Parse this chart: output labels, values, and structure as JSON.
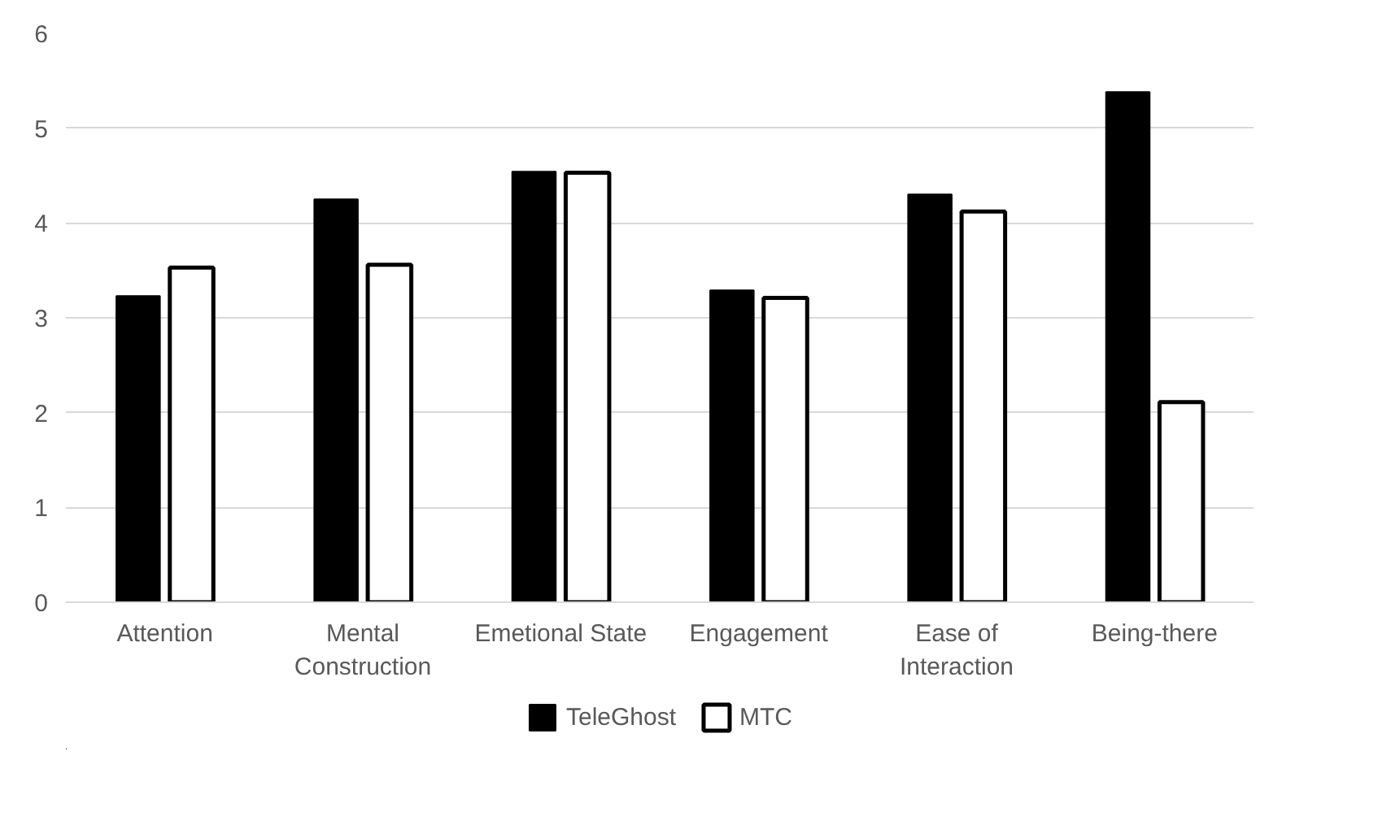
{
  "chart_data": {
    "type": "bar",
    "categories": [
      "Attention",
      "Mental\nConstruction",
      "Emetional State",
      "Engagement",
      "Ease of\nInteraction",
      "Being-there"
    ],
    "series": [
      {
        "name": "TeleGhost",
        "color": "#000000",
        "values": [
          3.23,
          4.25,
          4.54,
          3.29,
          4.3,
          5.38
        ]
      },
      {
        "name": "MTC",
        "color": "#ffffff",
        "values": [
          3.53,
          3.56,
          4.53,
          3.21,
          4.12,
          2.11
        ]
      }
    ],
    "ylim": [
      0,
      6
    ],
    "yticks": [
      0,
      1,
      2,
      3,
      4,
      5,
      6
    ],
    "grid": "y",
    "legend": "bottom"
  }
}
